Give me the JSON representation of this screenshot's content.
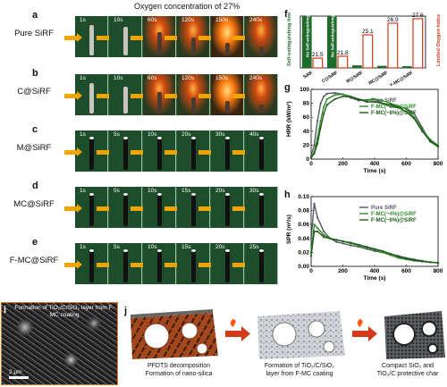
{
  "title": "Oxygen concentration of 27%",
  "panels": {
    "a": {
      "letter": "a",
      "label": "Pure SiRF",
      "times": [
        "1s",
        "10s",
        "60s",
        "120s",
        "150s",
        "240s"
      ]
    },
    "b": {
      "letter": "b",
      "label": "C@SiRF",
      "times": [
        "1s",
        "10s",
        "60s",
        "120s",
        "150s",
        "240s"
      ]
    },
    "c": {
      "letter": "c",
      "label": "M@SiRF",
      "times": [
        "1s",
        "5s",
        "10s",
        "20s",
        "30s",
        "40s"
      ]
    },
    "d": {
      "letter": "d",
      "label": "MC@SiRF",
      "times": [
        "1s",
        "5s",
        "10s",
        "15s",
        "20s",
        "30s"
      ]
    },
    "e": {
      "letter": "e",
      "label": "F-MC@SiRF",
      "times": [
        "1s",
        "5s",
        "10s",
        "15s",
        "20s",
        "25s"
      ]
    }
  },
  "panel_f": {
    "letter": "f"
  },
  "panel_g": {
    "letter": "g"
  },
  "panel_h": {
    "letter": "h"
  },
  "panel_i": {
    "letter": "i",
    "text": "Formation of TiO₂/C/SiO₂ layer from F-MC coating",
    "scale": "2 μm"
  },
  "panel_j": {
    "letter": "j",
    "captions": [
      "PFDTS decomposition\nFormation of nano-silica",
      "Formation of TiO₂/C/SiO₂\nlayer from F-MC coating",
      "Compact SiO₂ and\nTiO₂/C protective char"
    ]
  },
  "chart_data": [
    {
      "type": "bar",
      "panel": "f",
      "categories": [
        "SiRF",
        "C@SiRF",
        "M@SiRF",
        "MC@SiRF",
        "F-MC@SiRF"
      ],
      "series": [
        {
          "name": "Self-extinguishing time (s)",
          "axis": "left",
          "values": [
            300,
            300,
            15,
            12,
            10
          ]
        },
        {
          "name": "Limited Oxygen Index (%)",
          "axis": "right",
          "values": [
            21.5,
            21.8,
            25.1,
            26.9,
            27.6
          ]
        }
      ],
      "bar_labels_left": [
        "No Self-extinguishing",
        "No Self-extinguishing",
        "",
        "",
        ""
      ],
      "data_labels_right": [
        "21.5",
        "21.8",
        "25.1",
        "26.9",
        "27.6"
      ],
      "ylabel_left": "Self-extinguishing time (s)",
      "ylabel_right": "Limited Oxygen Index (%)",
      "ylim_left": [
        0,
        300
      ],
      "ylim_right": [
        20,
        28
      ],
      "colors": {
        "left": "#1f6b2c",
        "right": "#d23a1a"
      }
    },
    {
      "type": "line",
      "panel": "g",
      "xlabel": "Time (s)",
      "ylabel": "HRR (kW/m²)",
      "xlim": [
        0,
        800
      ],
      "ylim": [
        0,
        100
      ],
      "xticks": [
        0,
        200,
        400,
        600,
        800
      ],
      "yticks": [
        0,
        20,
        40,
        60,
        80,
        100
      ],
      "series": [
        {
          "name": "Pure SiRF",
          "color": "#555566",
          "x": [
            0,
            20,
            40,
            60,
            80,
            100,
            150,
            200,
            250,
            300,
            350,
            400,
            450,
            500,
            550,
            600,
            650,
            700,
            750,
            800
          ],
          "y": [
            5,
            20,
            55,
            80,
            90,
            94,
            95,
            93,
            88,
            84,
            85,
            86,
            80,
            75,
            74,
            73,
            65,
            45,
            25,
            18
          ]
        },
        {
          "name": "F-MC(~4%)@SiRF",
          "color": "#2f8a2a",
          "x": [
            0,
            20,
            40,
            60,
            80,
            100,
            150,
            200,
            250,
            300,
            350,
            400,
            450,
            500,
            550,
            600,
            650,
            700,
            750,
            800
          ],
          "y": [
            2,
            10,
            30,
            55,
            75,
            86,
            92,
            93,
            90,
            86,
            84,
            86,
            84,
            80,
            76,
            72,
            60,
            42,
            28,
            20
          ]
        },
        {
          "name": "F-MC(~8%)@SiRF",
          "color": "#1d5d16",
          "x": [
            0,
            20,
            40,
            60,
            80,
            100,
            150,
            200,
            250,
            300,
            350,
            400,
            450,
            500,
            550,
            600,
            650,
            700,
            750,
            800
          ],
          "y": [
            2,
            8,
            22,
            45,
            65,
            78,
            86,
            90,
            89,
            86,
            82,
            82,
            80,
            78,
            74,
            68,
            58,
            40,
            26,
            18
          ]
        }
      ]
    },
    {
      "type": "line",
      "panel": "h",
      "xlabel": "Time (s)",
      "ylabel": "SPR (m²/s)",
      "xlim": [
        0,
        800
      ],
      "ylim": [
        0,
        0.1
      ],
      "xticks": [
        0,
        200,
        400,
        600,
        800
      ],
      "yticks": [
        0.0,
        0.02,
        0.04,
        0.06,
        0.08,
        0.1
      ],
      "series": [
        {
          "name": "Pure SiRF",
          "color": "#555566",
          "x": [
            0,
            20,
            40,
            80,
            120,
            160,
            200,
            250,
            300,
            350,
            400,
            450,
            500,
            550,
            600,
            650,
            700,
            750,
            800
          ],
          "y": [
            0.04,
            0.09,
            0.07,
            0.05,
            0.04,
            0.035,
            0.033,
            0.03,
            0.028,
            0.025,
            0.022,
            0.02,
            0.018,
            0.015,
            0.012,
            0.01,
            0.008,
            0.006,
            0.005
          ]
        },
        {
          "name": "F-MC(~4%)@SiRF",
          "color": "#2f8a2a",
          "x": [
            0,
            20,
            40,
            80,
            120,
            160,
            200,
            250,
            300,
            350,
            400,
            450,
            500,
            550,
            600,
            650,
            700,
            750,
            800
          ],
          "y": [
            0.02,
            0.06,
            0.055,
            0.045,
            0.04,
            0.038,
            0.036,
            0.033,
            0.03,
            0.027,
            0.024,
            0.02,
            0.016,
            0.012,
            0.01,
            0.008,
            0.007,
            0.006,
            0.005
          ]
        },
        {
          "name": "F-MC(~8%)@SiRF",
          "color": "#1d5d16",
          "x": [
            0,
            20,
            40,
            80,
            120,
            160,
            200,
            250,
            300,
            350,
            400,
            450,
            500,
            550,
            600,
            650,
            700,
            750,
            800
          ],
          "y": [
            0.015,
            0.05,
            0.05,
            0.042,
            0.04,
            0.038,
            0.036,
            0.034,
            0.031,
            0.028,
            0.025,
            0.022,
            0.018,
            0.014,
            0.011,
            0.009,
            0.007,
            0.006,
            0.005
          ]
        }
      ]
    }
  ]
}
